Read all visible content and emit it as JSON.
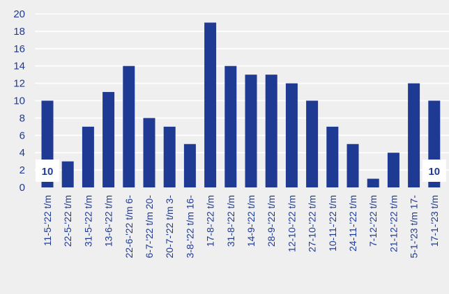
{
  "chart_data": {
    "type": "bar",
    "categories": [
      "11-5-'22 t/m",
      "22-5-'22 t/m",
      "31-5-'22 t/m",
      "13-6-'22 t/m",
      "22-6-'22 t/m 6-",
      "6-7-'22 t/m 20-",
      "20-7-'22 t/m 3-",
      "3-8-'22 t/m 16-",
      "17-8-'22 t/m",
      "31-8-'22 t/m",
      "14-9-'22 t/m",
      "28-9-'22 t/m",
      "12-10-'22 t/m",
      "27-10-'22 t/m",
      "10-11-'22 t/m",
      "24-11-'22 t/m",
      "7-12-'22 t/m",
      "21-12-'22 t/m",
      "5-1-'23 t/m 17-",
      "17-1-'23 t/m"
    ],
    "values": [
      10,
      3,
      7,
      11,
      14,
      8,
      7,
      5,
      19,
      14,
      13,
      13,
      12,
      10,
      7,
      5,
      1,
      4,
      12,
      10
    ],
    "ylim": [
      0,
      20
    ],
    "yticks": [
      0,
      2,
      4,
      6,
      8,
      10,
      12,
      14,
      16,
      18,
      20
    ],
    "data_labels": [
      {
        "index": 0,
        "text": "10"
      },
      {
        "index": 19,
        "text": "10"
      }
    ],
    "grid": true,
    "colors": {
      "bar": "#1f3a93",
      "background": "#efefef",
      "grid": "#ffffff"
    }
  }
}
